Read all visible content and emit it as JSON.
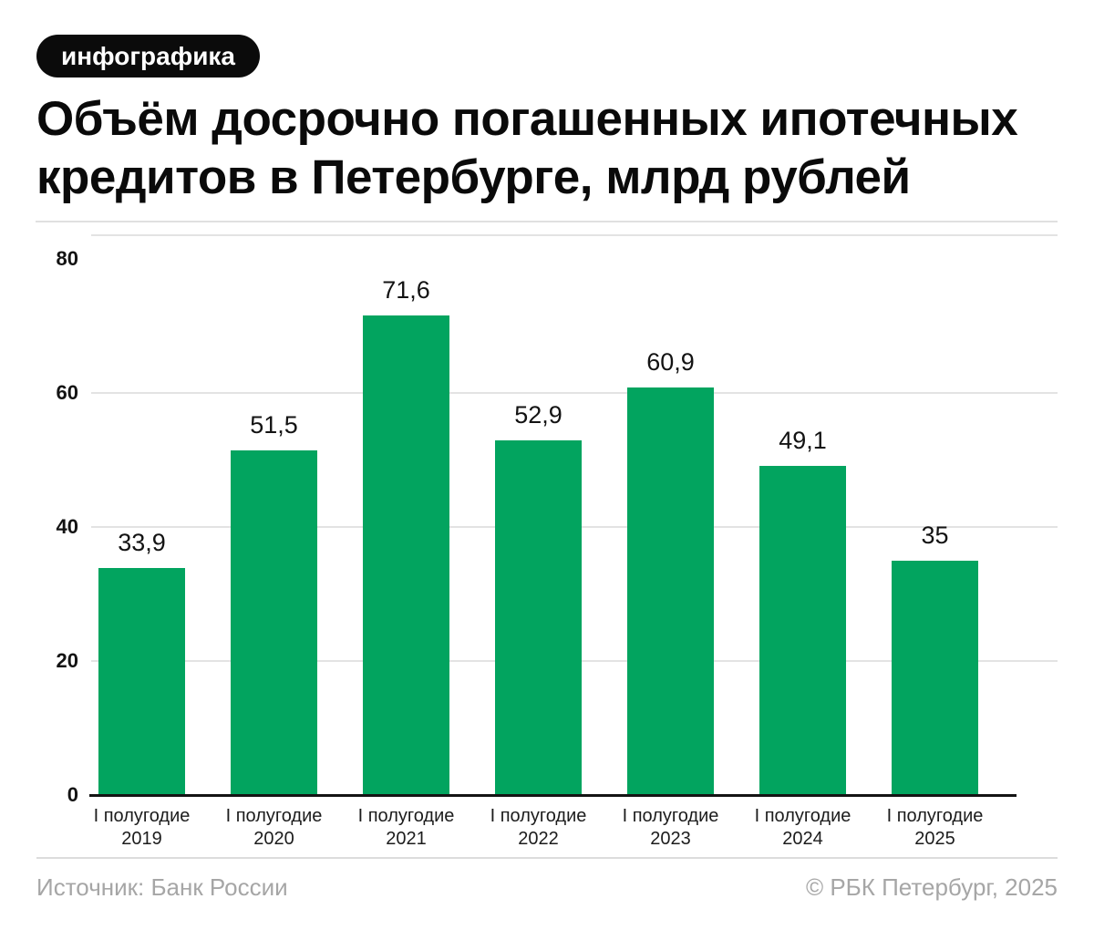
{
  "badge": {
    "label": "инфографика"
  },
  "title_lines": [
    "Объём досрочно погашенных ипотечных",
    "кредитов в Петербурге, млрд рублей"
  ],
  "chart_data": {
    "type": "bar",
    "title": "Объём досрочно погашенных ипотечных кредитов в Петербурге, млрд рублей",
    "categories": [
      [
        "I полугодие",
        "2019"
      ],
      [
        "I полугодие",
        "2020"
      ],
      [
        "I полугодие",
        "2021"
      ],
      [
        "I полугодие",
        "2022"
      ],
      [
        "I полугодие",
        "2023"
      ],
      [
        "I полугодие",
        "2024"
      ],
      [
        "I полугодие",
        "2025"
      ]
    ],
    "values": [
      33.9,
      51.5,
      71.6,
      52.9,
      60.9,
      49.1,
      35
    ],
    "value_labels": [
      "33,9",
      "51,5",
      "71,6",
      "52,9",
      "60,9",
      "49,1",
      "35"
    ],
    "xlabel": "",
    "ylabel": "",
    "yticks": [
      0,
      20,
      40,
      60,
      80
    ],
    "grid_ticks": [
      20,
      40,
      60
    ],
    "ylim": [
      0,
      83.7
    ],
    "grid": true,
    "legend": false,
    "bar_color": "#02a45f"
  },
  "footer": {
    "source": "Источник: Банк России",
    "copyright": "© РБК Петербург, 2025"
  }
}
